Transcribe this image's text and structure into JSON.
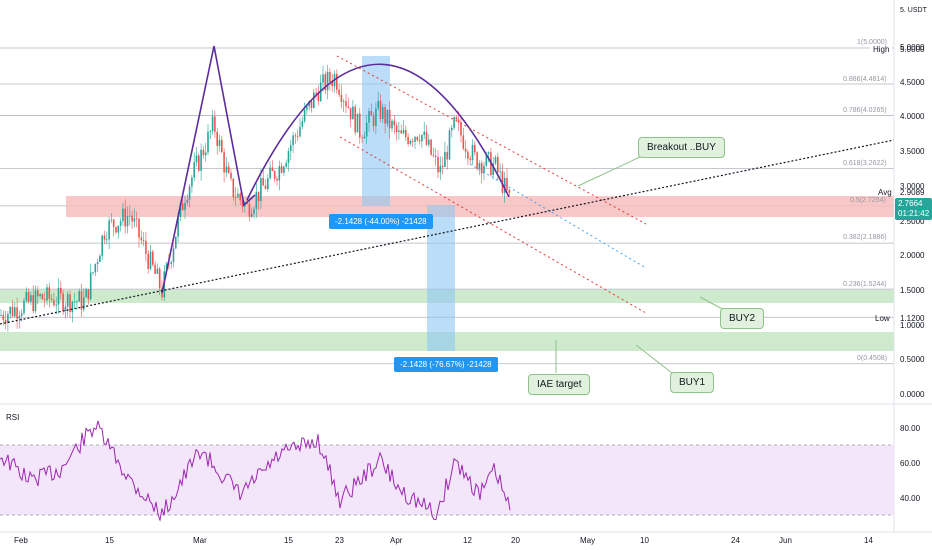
{
  "header": {
    "currency": "USDT"
  },
  "price_axis": {
    "ticks": [
      "5.0000",
      "4.5000",
      "4.0000",
      "3.5000",
      "3.0000",
      "2.5000",
      "2.0000",
      "1.5000",
      "1.0000",
      "0.5000",
      "0.0000"
    ],
    "top_tick": "5."
  },
  "tags": {
    "high_label": "High",
    "high_value": "5.0000",
    "avg_label": "Avg",
    "avg_value": "2.9089",
    "price_value": "2.7664",
    "price_time": "01:21:42",
    "low_label": "Low",
    "low_value": "1.1200"
  },
  "fib_levels": [
    {
      "label": "1(5.0000)"
    },
    {
      "label": "0.886(4.4814)"
    },
    {
      "label": "0.786(4.0265)"
    },
    {
      "label": "0.618(3.2622)"
    },
    {
      "label": "0.5(2.7254)"
    },
    {
      "label": "0.382(2.1886)"
    },
    {
      "label": "0.236(1.5244)"
    },
    {
      "label": "0(0.4508)"
    }
  ],
  "measures": {
    "m1": "-2.1428 (-44.00%) -21428",
    "m2": "-2.1428 (-76.67%) -21428"
  },
  "callouts": {
    "breakout": "Breakout ..BUY",
    "buy2": "BUY2",
    "iae": "IAE target",
    "buy1": "BUY1"
  },
  "rsi": {
    "title": "RSI",
    "ticks": [
      "80.00",
      "60.00",
      "40.00"
    ]
  },
  "dates": [
    "Feb",
    "15",
    "Mar",
    "15",
    "23",
    "Apr",
    "12",
    "20",
    "May",
    "10",
    "24",
    "Jun",
    "14"
  ],
  "colors": {
    "candle_up": "#26a69a",
    "candle_down": "#ef5350",
    "arc": "#5b2c9c",
    "rsi_line": "#9c27b0",
    "rsi_band": "#f3e5fa",
    "zone_red": "#f7bdbd",
    "zone_green": "#c9e8c8",
    "measure": "#2196f3"
  }
}
